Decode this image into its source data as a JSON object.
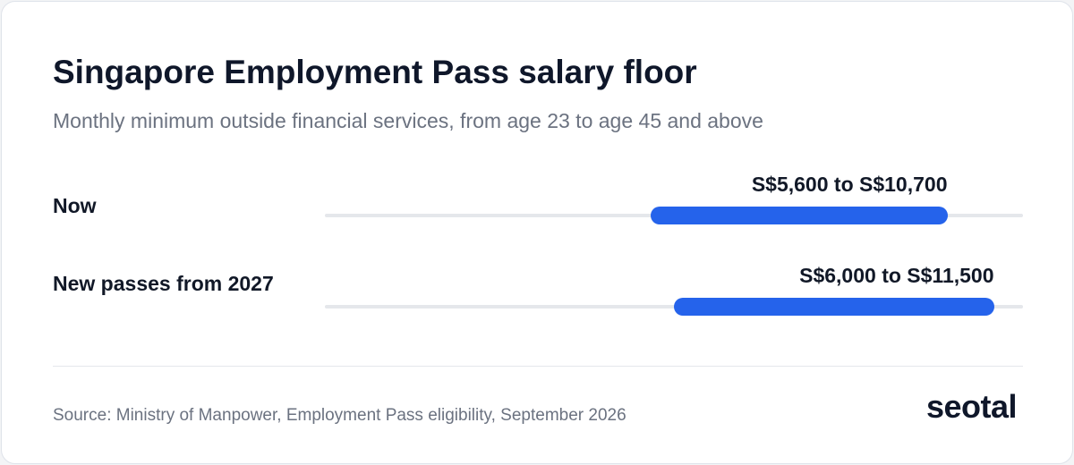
{
  "chart_data": {
    "type": "range_bar",
    "title": "Singapore Employment Pass salary floor",
    "subtitle": "Monthly minimum outside financial services, from age 23 to age 45 and above",
    "categories": [
      "Now",
      "New passes from 2027"
    ],
    "low": [
      5600,
      6000
    ],
    "high": [
      10700,
      11500
    ],
    "value_labels": [
      "S$5,600 to S$10,700",
      "S$6,000 to S$11,500"
    ],
    "color": "#2563eb",
    "track_color": "#e5e7eb",
    "xlim": [
      0,
      12000
    ],
    "source": "Source: Ministry of Manpower, Employment Pass eligibility, September 2026",
    "brand": "seotal"
  }
}
